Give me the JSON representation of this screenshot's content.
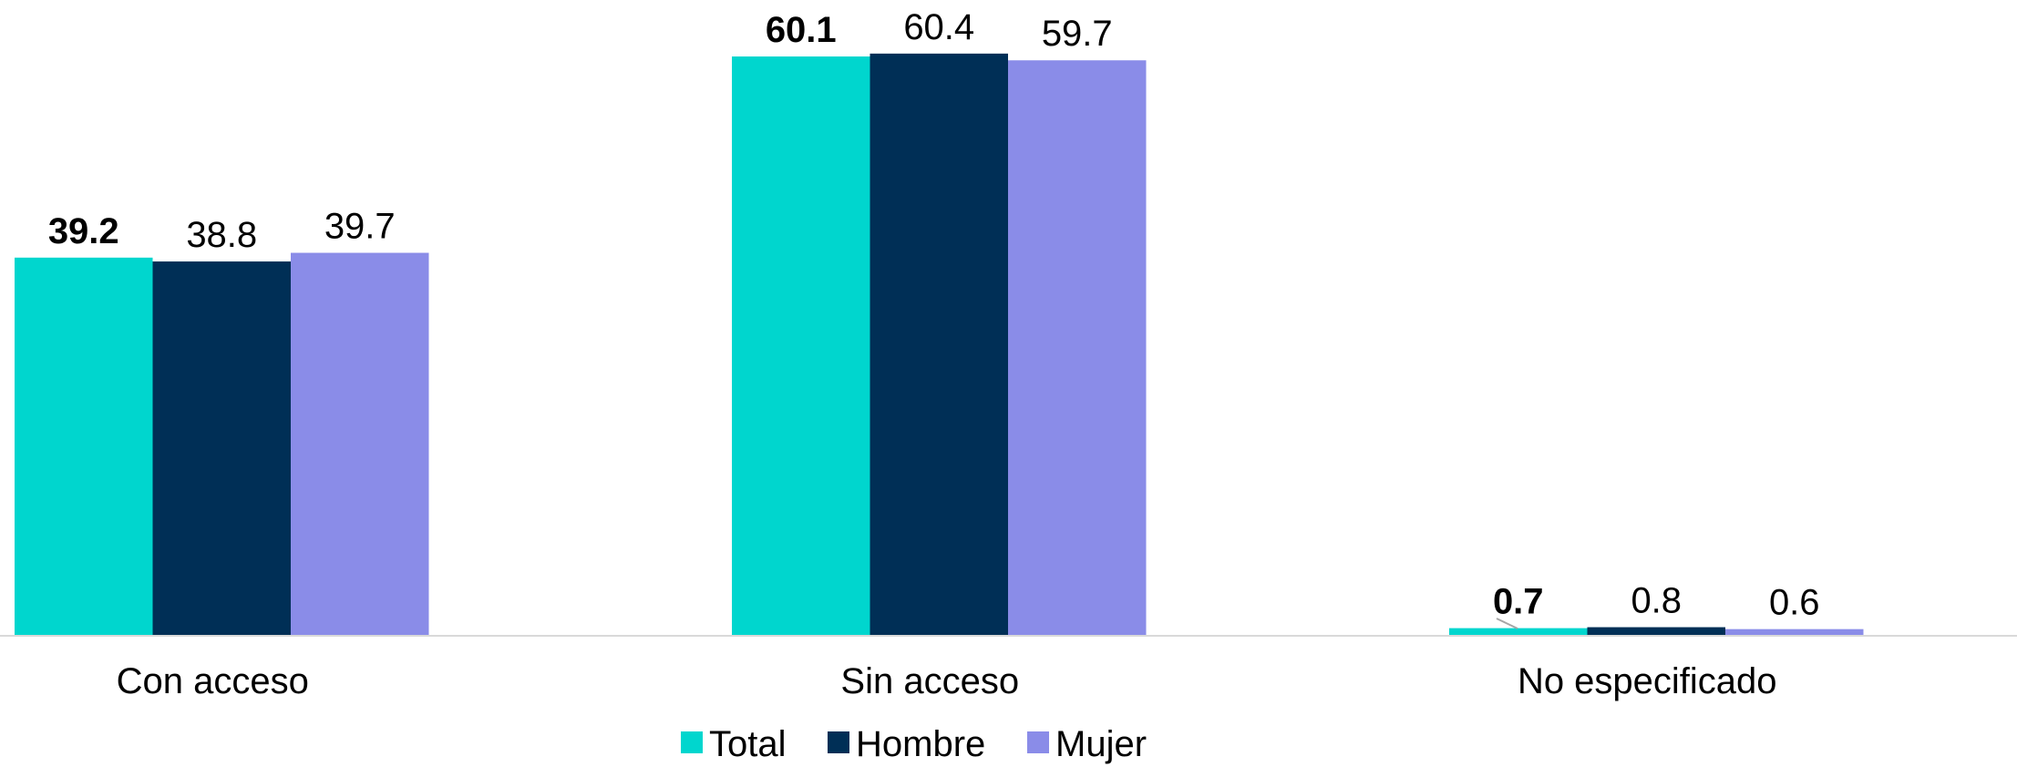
{
  "chart_data": {
    "type": "bar",
    "categories": [
      "Con acceso",
      "Sin acceso",
      "No especificado"
    ],
    "series": [
      {
        "name": "Total",
        "color": "#00D6CE",
        "values": [
          39.2,
          60.1,
          0.7
        ],
        "label_bold": true
      },
      {
        "name": "Hombre",
        "color": "#002F56",
        "values": [
          38.8,
          60.4,
          0.8
        ],
        "label_bold": false
      },
      {
        "name": "Mujer",
        "color": "#8A8CE8",
        "values": [
          39.7,
          59.7,
          0.6
        ],
        "label_bold": false
      }
    ],
    "ylim": [
      0,
      65
    ],
    "grid": false,
    "legend_position": "bottom-center",
    "axis_color": "#D9D9D9"
  }
}
